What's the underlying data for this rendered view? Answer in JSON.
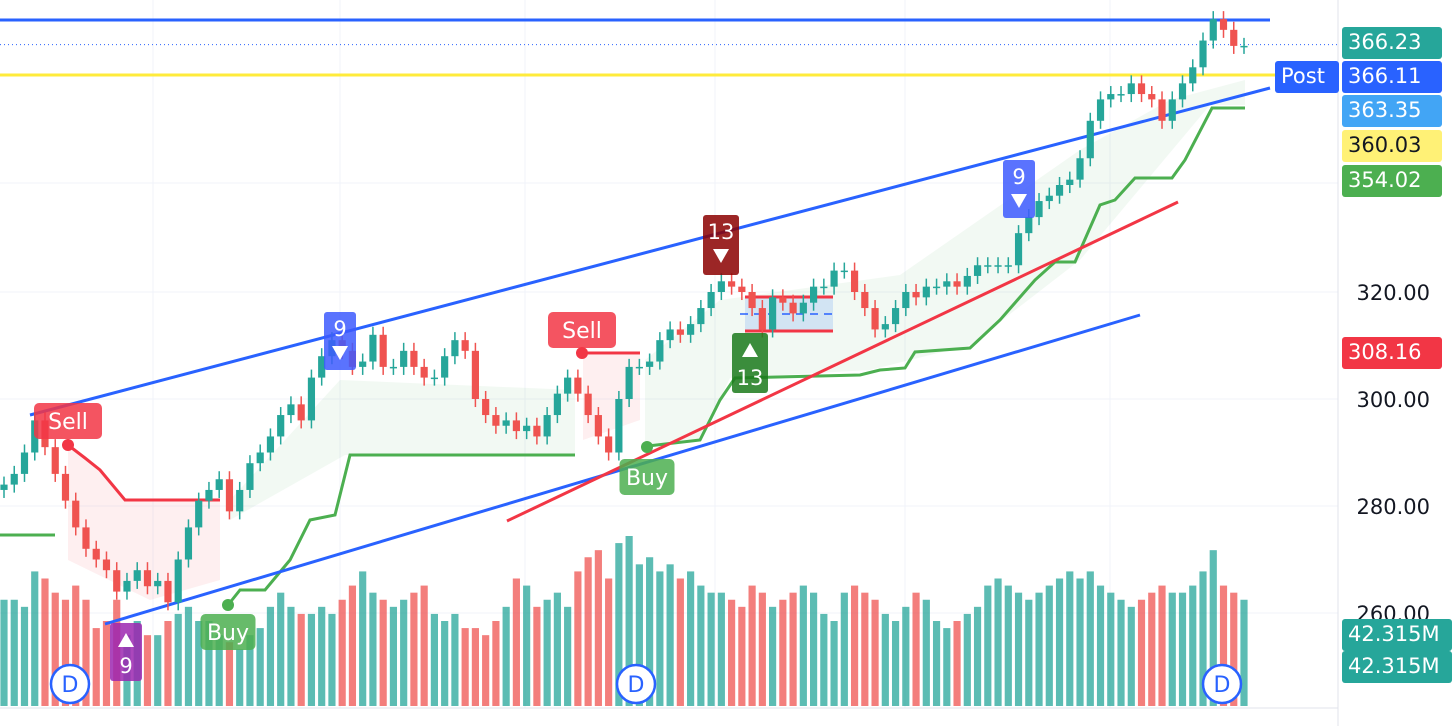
{
  "chart_data": {
    "type": "candlestick",
    "title": "",
    "ylim": [
      252,
      372
    ],
    "y_ticks": [
      320,
      300,
      280,
      260
    ],
    "y_tick_labels": [
      "320.00",
      "300.00",
      "280.00",
      "260.00"
    ],
    "price_tags": [
      {
        "label": "366.23",
        "value": 366.23,
        "color": "#26a69a",
        "name": "last-price-tag"
      },
      {
        "label": "366.11",
        "value": 366.11,
        "color": "#2962ff",
        "name": "post-price-tag"
      },
      {
        "label": "363.35",
        "value": 363.35,
        "color": "#42a5f5",
        "name": "channel-level-tag"
      },
      {
        "label": "360.03",
        "value": 360.03,
        "color": "#fff176",
        "name": "horizontal-level-tag"
      },
      {
        "label": "354.02",
        "value": 354.02,
        "color": "#4caf50",
        "name": "supertrend-tag"
      },
      {
        "label": "308.16",
        "value": 308.16,
        "color": "#f23645",
        "name": "red-line-tag"
      }
    ],
    "volume_tags": [
      "42.315M",
      "42.315M"
    ],
    "post_label": "Post",
    "horizontal_lines": [
      {
        "value": 370.6,
        "color": "#2962ff"
      },
      {
        "value": 360.03,
        "color": "#ffeb3b"
      }
    ],
    "signals": [
      {
        "label": "Sell",
        "type": "sell",
        "index": 4
      },
      {
        "label": "Buy",
        "type": "buy",
        "index": 22
      },
      {
        "label": "Sell",
        "type": "sell",
        "index": 57
      },
      {
        "label": "Buy",
        "type": "buy",
        "index": 64
      }
    ],
    "td_markers": [
      {
        "label": "9",
        "index": 33,
        "dir": "down",
        "color": "#3d5afe"
      },
      {
        "label": "9",
        "index": 12,
        "dir": "up",
        "color": "#9c27b0"
      },
      {
        "label": "13",
        "index": 71,
        "dir": "down",
        "color": "#8b0000"
      },
      {
        "label": "13",
        "index": 74,
        "dir": "up",
        "color": "#1b7a1b"
      },
      {
        "label": "9",
        "index": 100,
        "dir": "down",
        "color": "#3d5afe"
      }
    ],
    "dividend_markers": [
      "D",
      "D",
      "D"
    ],
    "candles": {
      "open": [
        283,
        284,
        286,
        290,
        296,
        291,
        286,
        281,
        276,
        272,
        270,
        268,
        264,
        266,
        268,
        265,
        266,
        262,
        270,
        276,
        281,
        283,
        285,
        279,
        283,
        288,
        290,
        293,
        297,
        299,
        296,
        304,
        308,
        311,
        309,
        306,
        307,
        312,
        306,
        306,
        309,
        306,
        304,
        304,
        308,
        311,
        309,
        300,
        297,
        295,
        296,
        294,
        295,
        293,
        297,
        301,
        304,
        301,
        297,
        293,
        290,
        300,
        306,
        306,
        307,
        311,
        313,
        312,
        314,
        317,
        320,
        322,
        321,
        320,
        317,
        313,
        319,
        318,
        316,
        318,
        321,
        321,
        324,
        324,
        320,
        317,
        313,
        314,
        317,
        320,
        319,
        321,
        321,
        322,
        321,
        323,
        325,
        325,
        325,
        325,
        331,
        334,
        337,
        338,
        340,
        341,
        345,
        352,
        356,
        357,
        357,
        359,
        357,
        356,
        352,
        356,
        359,
        362,
        367,
        371,
        369,
        366
      ],
      "close": [
        284,
        286,
        290,
        296,
        291,
        286,
        281,
        276,
        272,
        270,
        268,
        264,
        266,
        268,
        265,
        266,
        262,
        270,
        276,
        281,
        283,
        285,
        279,
        283,
        288,
        290,
        293,
        297,
        299,
        296,
        304,
        308,
        311,
        309,
        306,
        307,
        312,
        306,
        306,
        309,
        306,
        304,
        304,
        308,
        311,
        309,
        300,
        297,
        295,
        296,
        294,
        295,
        293,
        297,
        301,
        304,
        301,
        297,
        293,
        290,
        300,
        306,
        306,
        307,
        311,
        313,
        312,
        314,
        317,
        320,
        322,
        321,
        320,
        317,
        313,
        319,
        318,
        316,
        318,
        321,
        321,
        324,
        324,
        320,
        317,
        313,
        314,
        317,
        320,
        319,
        321,
        321,
        322,
        321,
        323,
        325,
        325,
        325,
        325,
        331,
        334,
        337,
        338,
        340,
        341,
        345,
        352,
        356,
        357,
        357,
        359,
        357,
        356,
        352,
        356,
        359,
        362,
        367,
        371,
        369,
        366,
        366
      ],
      "volume": [
        15,
        15,
        14,
        19,
        18,
        16,
        15,
        17,
        15,
        11,
        12,
        15,
        10,
        12,
        10,
        10,
        12,
        13,
        14,
        12,
        12,
        10,
        9,
        8,
        10,
        11,
        14,
        16,
        14,
        13,
        13,
        14,
        13,
        15,
        17,
        19,
        16,
        15,
        14,
        15,
        16,
        17,
        13,
        12,
        13,
        11,
        11,
        10,
        12,
        14,
        18,
        17,
        14,
        15,
        16,
        14,
        19,
        21,
        22,
        18,
        23,
        24,
        20,
        21,
        19,
        20,
        18,
        19,
        17,
        16,
        16,
        15,
        14,
        17,
        16,
        14,
        15,
        16,
        17,
        16,
        13,
        12,
        16,
        17,
        16,
        15,
        13,
        12,
        14,
        16,
        15,
        12,
        11,
        12,
        13,
        14,
        17,
        18,
        17,
        16,
        15,
        16,
        17,
        18,
        19,
        18,
        19,
        17,
        16,
        15,
        14,
        15,
        16,
        17,
        16,
        16,
        17,
        19,
        22,
        17,
        16,
        15
      ]
    },
    "volume_last": "42.315M"
  }
}
